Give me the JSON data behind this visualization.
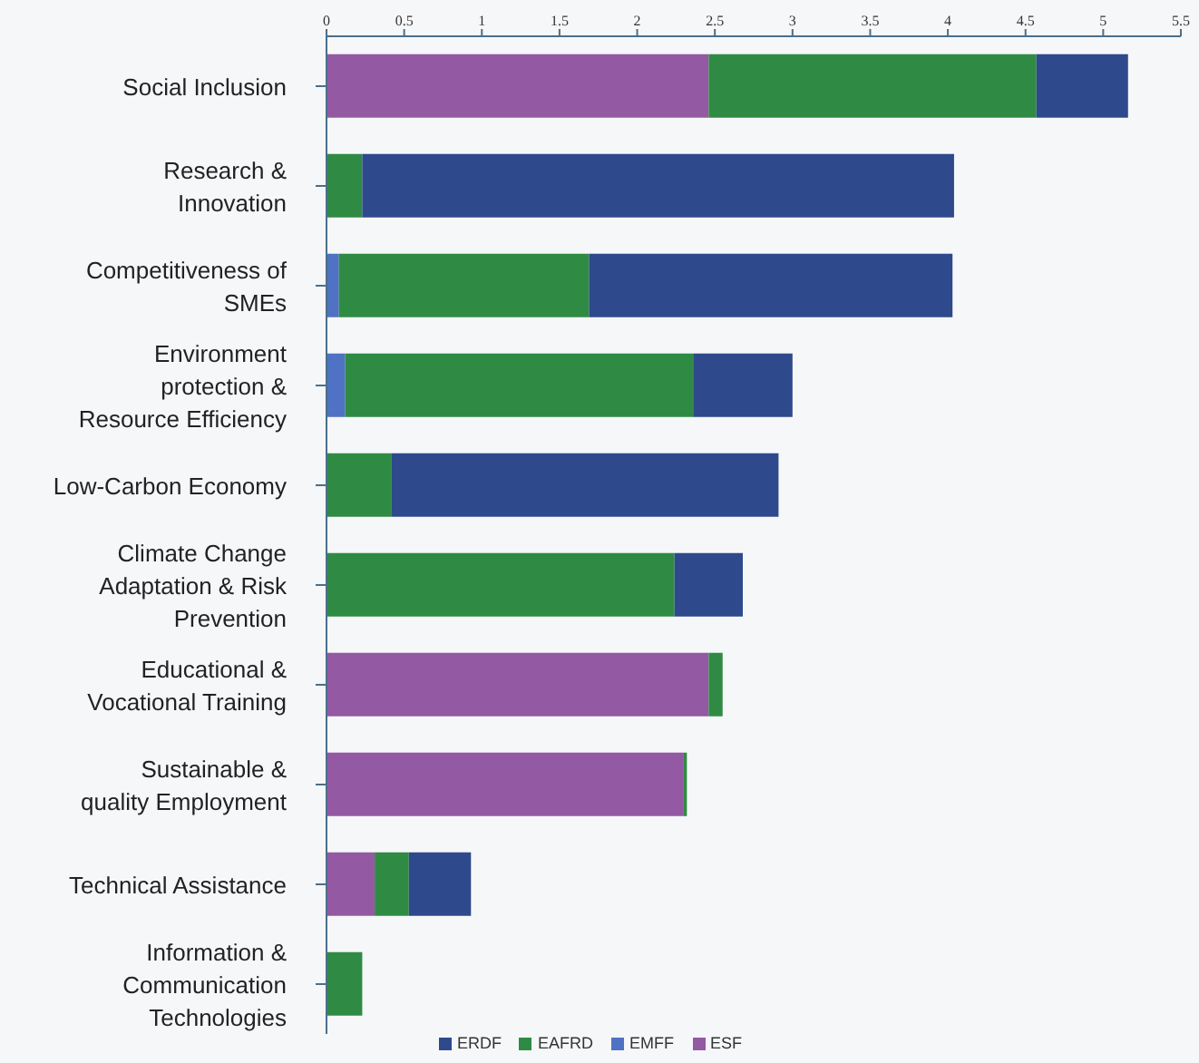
{
  "chart_data": {
    "type": "bar",
    "orientation": "horizontal",
    "stacked": true,
    "categories": [
      "Social Inclusion",
      "Research & Innovation",
      "Competitiveness of SMEs",
      "Environment protection & Resource Efficiency",
      "Low-Carbon Economy",
      "Climate Change Adaptation & Risk Prevention",
      "Educational & Vocational Training",
      "Sustainable & quality Employment",
      "Technical Assistance",
      "Information & Communication Technologies"
    ],
    "series": [
      {
        "name": "ESF",
        "color": "#9459a3",
        "values": [
          2.46,
          null,
          null,
          null,
          null,
          null,
          2.46,
          2.3,
          0.31,
          null
        ]
      },
      {
        "name": "EMFF",
        "color": "#4f72c4",
        "values": [
          null,
          null,
          0.08,
          0.12,
          null,
          null,
          null,
          null,
          null,
          null
        ]
      },
      {
        "name": "EAFRD",
        "color": "#2f8b44",
        "values": [
          2.11,
          0.23,
          1.61,
          2.24,
          0.42,
          2.24,
          0.09,
          0.02,
          0.22,
          0.23
        ]
      },
      {
        "name": "ERDF",
        "color": "#2e4a8c",
        "values": [
          0.59,
          3.81,
          2.34,
          0.64,
          2.49,
          0.44,
          null,
          null,
          0.4,
          null
        ]
      }
    ],
    "xlim": [
      0,
      5.5
    ],
    "xticks": [
      0,
      0.5,
      1,
      1.5,
      2,
      2.5,
      3,
      3.5,
      4,
      4.5,
      5,
      5.5
    ],
    "grid": false,
    "legend": "bottom"
  }
}
